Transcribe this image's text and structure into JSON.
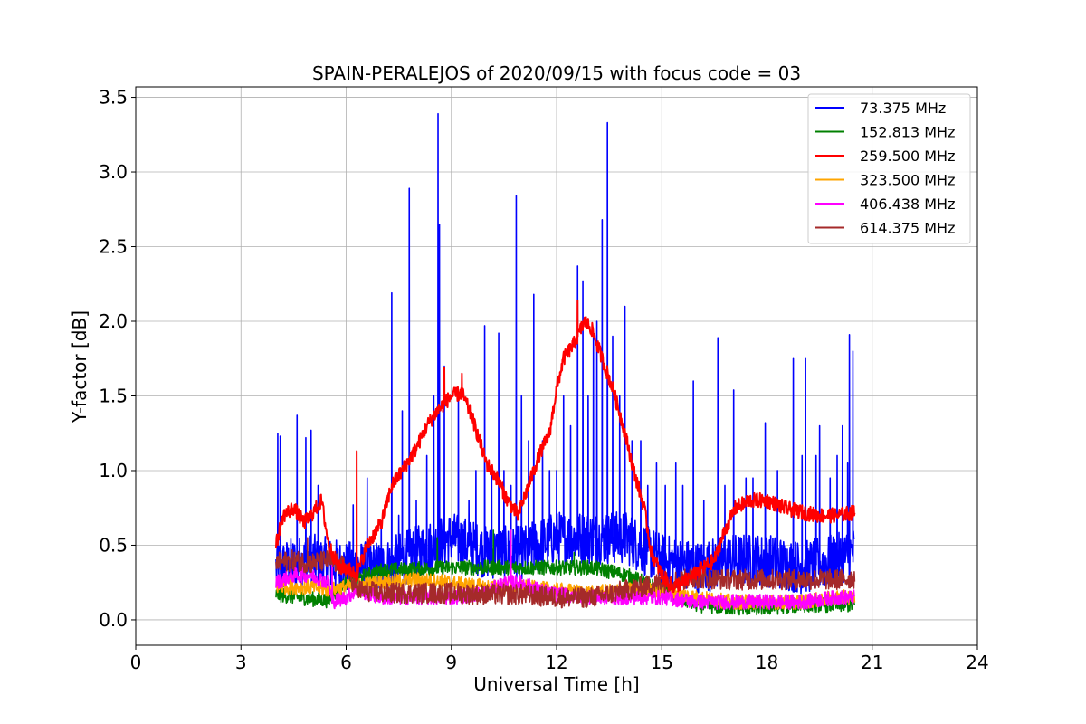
{
  "chart_data": {
    "type": "line",
    "title": "SPAIN-PERALEJOS of 2020/09/15 with focus code = 03",
    "xlabel": "Universal Time [h]",
    "ylabel": "Y-factor [dB]",
    "xlim": [
      0,
      24
    ],
    "ylim": [
      -0.17,
      3.57
    ],
    "xticks": [
      0,
      3,
      6,
      9,
      12,
      15,
      18,
      21,
      24
    ],
    "xtick_labels": [
      "0",
      "3",
      "6",
      "9",
      "12",
      "15",
      "18",
      "21",
      "24"
    ],
    "yticks": [
      0.0,
      0.5,
      1.0,
      1.5,
      2.0,
      2.5,
      3.0,
      3.5
    ],
    "ytick_labels": [
      "0.0",
      "0.5",
      "1.0",
      "1.5",
      "2.0",
      "2.5",
      "3.0",
      "3.5"
    ],
    "grid": true,
    "legend_position": "top-right",
    "series": [
      {
        "name": " 73.375 MHz",
        "color": "#0000ff",
        "noise": 0.18,
        "x": [
          4.0,
          5.0,
          6.0,
          7.0,
          8.0,
          9.0,
          10.0,
          11.0,
          12.0,
          13.0,
          14.0,
          15.0,
          16.0,
          17.0,
          18.0,
          19.0,
          20.0,
          20.5
        ],
        "y": [
          0.35,
          0.4,
          0.35,
          0.35,
          0.45,
          0.55,
          0.45,
          0.45,
          0.55,
          0.55,
          0.55,
          0.4,
          0.35,
          0.4,
          0.4,
          0.35,
          0.4,
          0.45
        ],
        "spikes": [
          [
            4.05,
            1.25
          ],
          [
            4.12,
            1.23
          ],
          [
            4.6,
            1.37
          ],
          [
            4.85,
            1.22
          ],
          [
            5.0,
            1.27
          ],
          [
            5.2,
            0.9
          ],
          [
            6.2,
            0.77
          ],
          [
            6.6,
            0.95
          ],
          [
            7.0,
            0.65
          ],
          [
            7.3,
            2.19
          ],
          [
            7.5,
            0.7
          ],
          [
            7.6,
            1.4
          ],
          [
            7.8,
            2.89
          ],
          [
            8.0,
            0.8
          ],
          [
            8.3,
            1.1
          ],
          [
            8.5,
            1.5
          ],
          [
            8.62,
            3.39
          ],
          [
            8.66,
            2.65
          ],
          [
            8.8,
            1.7
          ],
          [
            9.2,
            1.5
          ],
          [
            9.5,
            0.8
          ],
          [
            9.7,
            1.0
          ],
          [
            9.95,
            1.97
          ],
          [
            10.15,
            1.0
          ],
          [
            10.35,
            1.92
          ],
          [
            10.5,
            1.0
          ],
          [
            10.7,
            0.9
          ],
          [
            10.85,
            2.84
          ],
          [
            11.0,
            1.5
          ],
          [
            11.2,
            1.2
          ],
          [
            11.35,
            2.18
          ],
          [
            11.6,
            1.2
          ],
          [
            11.8,
            1.0
          ],
          [
            12.0,
            1.0
          ],
          [
            12.2,
            1.5
          ],
          [
            12.4,
            1.3
          ],
          [
            12.6,
            2.37
          ],
          [
            12.75,
            2.27
          ],
          [
            12.9,
            1.5
          ],
          [
            13.05,
            1.9
          ],
          [
            13.15,
            2.0
          ],
          [
            13.3,
            2.68
          ],
          [
            13.45,
            3.33
          ],
          [
            13.6,
            1.9
          ],
          [
            13.8,
            1.5
          ],
          [
            13.95,
            2.1
          ],
          [
            14.15,
            1.2
          ],
          [
            14.4,
            1.2
          ],
          [
            14.6,
            0.9
          ],
          [
            14.85,
            1.05
          ],
          [
            15.1,
            0.9
          ],
          [
            15.4,
            1.05
          ],
          [
            15.6,
            0.9
          ],
          [
            15.9,
            1.6
          ],
          [
            16.2,
            0.8
          ],
          [
            16.6,
            1.89
          ],
          [
            16.8,
            0.9
          ],
          [
            17.05,
            1.54
          ],
          [
            17.4,
            0.95
          ],
          [
            17.6,
            0.95
          ],
          [
            17.95,
            1.32
          ],
          [
            18.3,
            1.0
          ],
          [
            18.75,
            1.75
          ],
          [
            19.0,
            1.1
          ],
          [
            19.1,
            1.75
          ],
          [
            19.4,
            1.1
          ],
          [
            19.5,
            1.3
          ],
          [
            19.8,
            0.95
          ],
          [
            20.0,
            1.1
          ],
          [
            20.15,
            1.3
          ],
          [
            20.3,
            1.05
          ],
          [
            20.35,
            1.91
          ],
          [
            20.45,
            1.8
          ]
        ]
      },
      {
        "name": "152.813 MHz",
        "color": "#008000",
        "noise": 0.05,
        "x": [
          4.0,
          5.0,
          5.5,
          6.0,
          7.0,
          8.0,
          9.0,
          10.0,
          11.0,
          12.0,
          13.0,
          14.0,
          15.0,
          16.0,
          17.0,
          18.0,
          19.0,
          20.0,
          20.5
        ],
        "y": [
          0.17,
          0.14,
          0.13,
          0.25,
          0.33,
          0.34,
          0.35,
          0.35,
          0.35,
          0.35,
          0.35,
          0.3,
          0.2,
          0.1,
          0.08,
          0.08,
          0.1,
          0.1,
          0.1
        ],
        "spikes": [
          [
            8.6,
            0.55
          ],
          [
            10.2,
            0.6
          ],
          [
            12.5,
            0.45
          ]
        ]
      },
      {
        "name": "259.500 MHz",
        "color": "#ff0000",
        "noise": 0.05,
        "x": [
          4.0,
          4.2,
          4.5,
          4.8,
          5.0,
          5.3,
          5.5,
          5.8,
          6.0,
          6.3,
          6.6,
          7.0,
          7.3,
          7.6,
          8.0,
          8.3,
          8.6,
          9.0,
          9.3,
          9.6,
          10.0,
          10.3,
          10.6,
          10.9,
          11.2,
          11.5,
          11.8,
          12.0,
          12.2,
          12.5,
          12.8,
          13.0,
          13.3,
          13.6,
          13.9,
          14.2,
          14.5,
          14.7,
          15.0,
          15.3,
          15.6,
          15.9,
          16.2,
          16.5,
          16.8,
          17.1,
          17.5,
          18.0,
          18.5,
          19.0,
          19.5,
          20.0,
          20.5
        ],
        "y": [
          0.5,
          0.7,
          0.75,
          0.65,
          0.7,
          0.8,
          0.5,
          0.35,
          0.35,
          0.3,
          0.5,
          0.65,
          0.9,
          1.0,
          1.15,
          1.3,
          1.4,
          1.5,
          1.52,
          1.35,
          1.05,
          0.95,
          0.8,
          0.7,
          0.9,
          1.1,
          1.25,
          1.55,
          1.75,
          1.85,
          2.0,
          1.95,
          1.75,
          1.55,
          1.3,
          1.0,
          0.75,
          0.45,
          0.3,
          0.22,
          0.25,
          0.3,
          0.35,
          0.4,
          0.6,
          0.75,
          0.8,
          0.8,
          0.75,
          0.72,
          0.7,
          0.7,
          0.72
        ],
        "spikes": [
          [
            6.3,
            1.13
          ],
          [
            8.8,
            1.69
          ],
          [
            9.3,
            1.65
          ],
          [
            12.6,
            2.14
          ]
        ]
      },
      {
        "name": "323.500 MHz",
        "color": "#ffa500",
        "noise": 0.05,
        "x": [
          4.0,
          5.0,
          5.5,
          6.0,
          7.0,
          8.0,
          9.0,
          10.0,
          11.0,
          12.0,
          13.0,
          14.0,
          15.0,
          16.0,
          17.0,
          18.0,
          19.0,
          20.0,
          20.5
        ],
        "y": [
          0.22,
          0.22,
          0.2,
          0.22,
          0.25,
          0.27,
          0.25,
          0.22,
          0.22,
          0.2,
          0.18,
          0.2,
          0.2,
          0.15,
          0.12,
          0.12,
          0.12,
          0.15,
          0.15
        ],
        "spikes": []
      },
      {
        "name": "406.438 MHz",
        "color": "#ff00ff",
        "noise": 0.05,
        "x": [
          4.0,
          4.5,
          5.0,
          5.5,
          5.6,
          6.0,
          6.3,
          7.0,
          8.0,
          9.0,
          10.0,
          10.5,
          11.0,
          11.5,
          12.0,
          13.0,
          14.0,
          15.0,
          16.0,
          17.0,
          18.0,
          19.0,
          20.0,
          20.5
        ],
        "y": [
          0.25,
          0.3,
          0.3,
          0.25,
          0.12,
          0.15,
          0.2,
          0.15,
          0.15,
          0.15,
          0.18,
          0.25,
          0.25,
          0.2,
          0.17,
          0.15,
          0.15,
          0.15,
          0.12,
          0.12,
          0.12,
          0.12,
          0.15,
          0.15
        ],
        "spikes": [
          [
            10.7,
            0.6
          ],
          [
            5.6,
            0.4
          ]
        ]
      },
      {
        "name": "614.375 MHz",
        "color": "#a52a2a",
        "noise": 0.07,
        "x": [
          4.0,
          4.5,
          5.0,
          5.5,
          6.0,
          6.3,
          7.0,
          8.0,
          9.0,
          10.0,
          11.0,
          12.0,
          13.0,
          14.0,
          15.0,
          16.0,
          17.0,
          18.0,
          19.0,
          20.0,
          20.5
        ],
        "y": [
          0.38,
          0.4,
          0.38,
          0.4,
          0.35,
          0.2,
          0.18,
          0.18,
          0.18,
          0.17,
          0.17,
          0.15,
          0.15,
          0.2,
          0.25,
          0.28,
          0.27,
          0.27,
          0.27,
          0.27,
          0.28
        ],
        "spikes": [
          [
            4.9,
            0.55
          ]
        ]
      }
    ]
  }
}
